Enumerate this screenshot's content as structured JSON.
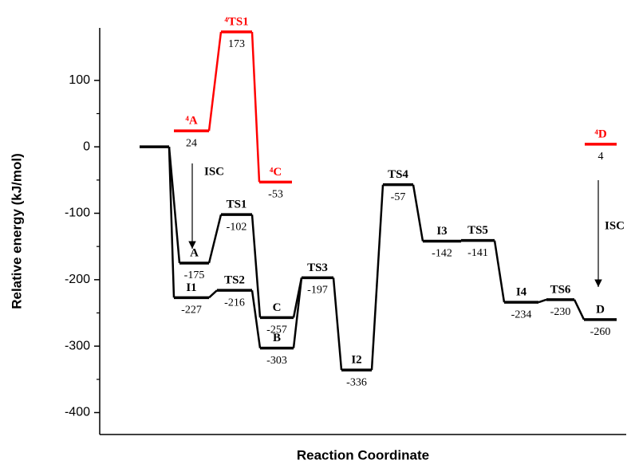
{
  "chart_data": {
    "type": "profile",
    "ylabel": "Relative energy (kJ/mol)",
    "xlabel": "Reaction Coordinate",
    "ylim": [
      -433,
      179
    ],
    "yticks": [
      -400,
      -300,
      -200,
      -100,
      0,
      100
    ],
    "annotations": [
      "ISC",
      "ISC"
    ],
    "series": [
      {
        "color": "#000000",
        "categories": [
          null,
          "A",
          "TS1",
          "C",
          "TS3",
          "I2",
          "TS4",
          "I3",
          "TS5",
          "I4",
          "TS6",
          "D"
        ],
        "values": [
          0,
          -175,
          -102,
          -257,
          -197,
          -336,
          -57,
          -142,
          -141,
          -234,
          -230,
          -260
        ]
      },
      {
        "color": "#000000",
        "categories": [
          "I1",
          "TS2",
          "B"
        ],
        "values": [
          -227,
          -216,
          -303
        ]
      },
      {
        "color": "#ff0000",
        "categories": [
          "⁴A",
          "⁴TS1",
          "⁴C"
        ],
        "values": [
          24,
          173,
          -53
        ]
      },
      {
        "color": "#ff0000",
        "categories": [
          "⁴D"
        ],
        "values": [
          4
        ]
      }
    ]
  }
}
